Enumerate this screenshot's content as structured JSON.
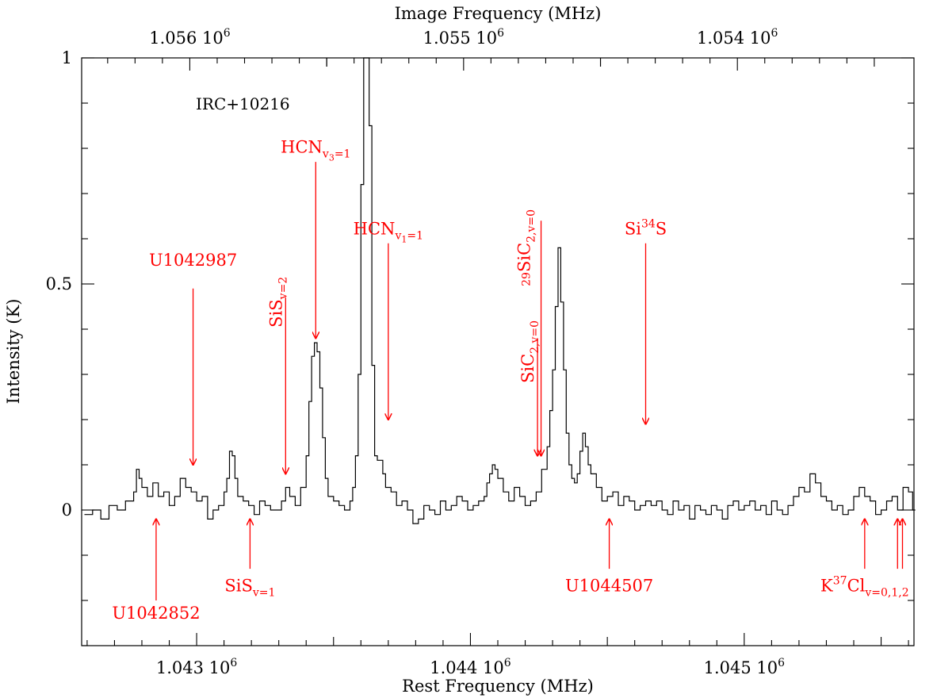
{
  "chart_data": {
    "type": "line",
    "title": "",
    "object_label": "IRC+10216",
    "xlabel": "Rest Frequency (MHz)",
    "ylabel": "Intensity (K)",
    "top_xlabel": "Image Frequency (MHz)",
    "xlim": [
      1042580,
      1045620
    ],
    "ylim": [
      -0.3,
      1.0
    ],
    "grid": false,
    "x_ticks": [
      {
        "value": 1043000,
        "label": "1.043 10",
        "exp": "6"
      },
      {
        "value": 1044000,
        "label": "1.044 10",
        "exp": "6"
      },
      {
        "value": 1045000,
        "label": "1.045 10",
        "exp": "6"
      }
    ],
    "top_ticks": [
      {
        "label": "1.056 10",
        "exp": "6",
        "rest_value": 1042975
      },
      {
        "label": "1.055 10",
        "exp": "6",
        "rest_value": 1043975
      },
      {
        "label": "1.054 10",
        "exp": "6",
        "rest_value": 1044975
      }
    ],
    "y_ticks": [
      {
        "value": 0,
        "label": "0"
      },
      {
        "value": 0.5,
        "label": "0.5"
      },
      {
        "value": 1,
        "label": "1"
      }
    ],
    "series": [
      {
        "color": "#000000",
        "step": true,
        "points": [
          [
            1042590,
            -0.01
          ],
          [
            1042620,
            0.0
          ],
          [
            1042650,
            -0.02
          ],
          [
            1042680,
            0.01
          ],
          [
            1042710,
            0.0
          ],
          [
            1042740,
            0.02
          ],
          [
            1042770,
            0.04
          ],
          [
            1042780,
            0.09
          ],
          [
            1042790,
            0.07
          ],
          [
            1042800,
            0.05
          ],
          [
            1042820,
            0.03
          ],
          [
            1042840,
            0.06
          ],
          [
            1042860,
            0.03
          ],
          [
            1042880,
            0.04
          ],
          [
            1042900,
            0.01
          ],
          [
            1042920,
            0.03
          ],
          [
            1042940,
            0.07
          ],
          [
            1042960,
            0.05
          ],
          [
            1042980,
            0.04
          ],
          [
            1043000,
            0.02
          ],
          [
            1043020,
            0.03
          ],
          [
            1043040,
            -0.02
          ],
          [
            1043060,
            0.0
          ],
          [
            1043080,
            0.01
          ],
          [
            1043100,
            0.04
          ],
          [
            1043110,
            0.07
          ],
          [
            1043120,
            0.13
          ],
          [
            1043130,
            0.12
          ],
          [
            1043140,
            0.07
          ],
          [
            1043150,
            0.03
          ],
          [
            1043170,
            0.02
          ],
          [
            1043190,
            0.01
          ],
          [
            1043210,
            -0.01
          ],
          [
            1043230,
            0.02
          ],
          [
            1043250,
            0.01
          ],
          [
            1043270,
            0.0
          ],
          [
            1043290,
            0.0
          ],
          [
            1043310,
            0.02
          ],
          [
            1043325,
            0.05
          ],
          [
            1043340,
            0.03
          ],
          [
            1043360,
            0.01
          ],
          [
            1043380,
            0.05
          ],
          [
            1043400,
            0.12
          ],
          [
            1043410,
            0.24
          ],
          [
            1043420,
            0.34
          ],
          [
            1043430,
            0.37
          ],
          [
            1043440,
            0.35
          ],
          [
            1043450,
            0.27
          ],
          [
            1043460,
            0.16
          ],
          [
            1043470,
            0.07
          ],
          [
            1043480,
            0.03
          ],
          [
            1043500,
            0.02
          ],
          [
            1043520,
            0.01
          ],
          [
            1043540,
            0.0
          ],
          [
            1043560,
            0.02
          ],
          [
            1043570,
            0.05
          ],
          [
            1043580,
            0.12
          ],
          [
            1043590,
            0.3
          ],
          [
            1043600,
            0.72
          ],
          [
            1043610,
            1.0
          ],
          [
            1043620,
            1.0
          ],
          [
            1043630,
            0.85
          ],
          [
            1043640,
            0.32
          ],
          [
            1043650,
            0.12
          ],
          [
            1043660,
            0.11
          ],
          [
            1043670,
            0.11
          ],
          [
            1043680,
            0.08
          ],
          [
            1043690,
            0.05
          ],
          [
            1043710,
            0.04
          ],
          [
            1043730,
            0.01
          ],
          [
            1043750,
            0.02
          ],
          [
            1043770,
            0.0
          ],
          [
            1043790,
            -0.03
          ],
          [
            1043810,
            -0.02
          ],
          [
            1043830,
            0.01
          ],
          [
            1043850,
            0.0
          ],
          [
            1043870,
            -0.01
          ],
          [
            1043890,
            0.02
          ],
          [
            1043910,
            0.0
          ],
          [
            1043930,
            0.01
          ],
          [
            1043950,
            0.03
          ],
          [
            1043970,
            0.02
          ],
          [
            1043990,
            0.0
          ],
          [
            1044010,
            0.01
          ],
          [
            1044030,
            0.02
          ],
          [
            1044050,
            0.03
          ],
          [
            1044060,
            0.06
          ],
          [
            1044070,
            0.08
          ],
          [
            1044080,
            0.1
          ],
          [
            1044090,
            0.09
          ],
          [
            1044100,
            0.07
          ],
          [
            1044120,
            0.04
          ],
          [
            1044140,
            0.02
          ],
          [
            1044160,
            0.05
          ],
          [
            1044180,
            0.03
          ],
          [
            1044200,
            0.01
          ],
          [
            1044220,
            0.02
          ],
          [
            1044240,
            0.04
          ],
          [
            1044260,
            0.09
          ],
          [
            1044280,
            0.14
          ],
          [
            1044290,
            0.22
          ],
          [
            1044300,
            0.31
          ],
          [
            1044310,
            0.45
          ],
          [
            1044320,
            0.58
          ],
          [
            1044330,
            0.46
          ],
          [
            1044340,
            0.31
          ],
          [
            1044350,
            0.17
          ],
          [
            1044360,
            0.1
          ],
          [
            1044370,
            0.07
          ],
          [
            1044380,
            0.06
          ],
          [
            1044390,
            0.08
          ],
          [
            1044400,
            0.13
          ],
          [
            1044410,
            0.17
          ],
          [
            1044420,
            0.14
          ],
          [
            1044430,
            0.1
          ],
          [
            1044440,
            0.08
          ],
          [
            1044460,
            0.05
          ],
          [
            1044480,
            0.02
          ],
          [
            1044500,
            0.03
          ],
          [
            1044520,
            0.04
          ],
          [
            1044540,
            0.01
          ],
          [
            1044560,
            0.03
          ],
          [
            1044580,
            0.02
          ],
          [
            1044600,
            0.0
          ],
          [
            1044620,
            0.01
          ],
          [
            1044640,
            0.02
          ],
          [
            1044660,
            0.01
          ],
          [
            1044680,
            0.02
          ],
          [
            1044700,
            0.0
          ],
          [
            1044720,
            -0.01
          ],
          [
            1044740,
            0.02
          ],
          [
            1044760,
            0.0
          ],
          [
            1044780,
            0.01
          ],
          [
            1044800,
            -0.02
          ],
          [
            1044820,
            0.01
          ],
          [
            1044840,
            0.0
          ],
          [
            1044860,
            -0.01
          ],
          [
            1044880,
            0.01
          ],
          [
            1044900,
            0.0
          ],
          [
            1044920,
            -0.02
          ],
          [
            1044940,
            0.01
          ],
          [
            1044960,
            0.02
          ],
          [
            1044980,
            0.0
          ],
          [
            1045000,
            0.01
          ],
          [
            1045020,
            0.02
          ],
          [
            1045040,
            0.0
          ],
          [
            1045060,
            0.01
          ],
          [
            1045080,
            -0.01
          ],
          [
            1045100,
            0.02
          ],
          [
            1045120,
            0.0
          ],
          [
            1045140,
            -0.01
          ],
          [
            1045160,
            0.01
          ],
          [
            1045180,
            0.03
          ],
          [
            1045200,
            0.05
          ],
          [
            1045220,
            0.04
          ],
          [
            1045240,
            0.08
          ],
          [
            1045260,
            0.06
          ],
          [
            1045280,
            0.03
          ],
          [
            1045300,
            0.02
          ],
          [
            1045320,
            0.0
          ],
          [
            1045340,
            0.01
          ],
          [
            1045360,
            -0.01
          ],
          [
            1045380,
            0.0
          ],
          [
            1045400,
            0.03
          ],
          [
            1045420,
            0.05
          ],
          [
            1045440,
            0.03
          ],
          [
            1045460,
            0.02
          ],
          [
            1045480,
            -0.01
          ],
          [
            1045500,
            0.0
          ],
          [
            1045520,
            0.02
          ],
          [
            1045540,
            0.03
          ],
          [
            1045560,
            0.0
          ],
          [
            1045580,
            0.05
          ],
          [
            1045600,
            0.04
          ],
          [
            1045615,
            0.0
          ]
        ]
      }
    ],
    "annotations": [
      {
        "label": "U1042987",
        "freq": 1042987,
        "direction": "down",
        "label_y": 0.54,
        "tail_y": 0.49,
        "head_y": 0.1,
        "rotated": false
      },
      {
        "label": "SiS",
        "sub": "v=2",
        "freq": 1043325,
        "direction": "down",
        "label_y": 0.46,
        "tail_y": 0.47,
        "head_y": 0.08,
        "rotated": true
      },
      {
        "label": "HCN",
        "sub": "v",
        "subsub": "3",
        "subtail": "=1",
        "freq": 1043435,
        "direction": "down",
        "label_y": 0.79,
        "tail_y": 0.77,
        "head_y": 0.38,
        "rotated": false
      },
      {
        "label": "HCN",
        "sub": "v",
        "subsub": "1",
        "subtail": "=1",
        "freq": 1043700,
        "direction": "down",
        "label_y": 0.61,
        "tail_y": 0.59,
        "head_y": 0.2,
        "rotated": false
      },
      {
        "label": "SiC",
        "sub": "2,v=0",
        "freq": 1044245,
        "direction": "down",
        "label_y": 0.35,
        "tail_y": 0.38,
        "head_y": 0.12,
        "rotated": true
      },
      {
        "label": "SiC",
        "sup_pre": "29",
        "sub": "2,v=0",
        "freq": 1044258,
        "direction": "down",
        "label_y": 0.58,
        "tail_y": 0.64,
        "head_y": 0.12,
        "rotated": true
      },
      {
        "label": "Si",
        "sup": "34",
        "label_tail": "S",
        "freq": 1044640,
        "direction": "down",
        "label_y": 0.61,
        "tail_y": 0.59,
        "head_y": 0.19,
        "rotated": false
      },
      {
        "label": "U1042852",
        "freq": 1042852,
        "direction": "up",
        "label_y": -0.24,
        "tail_y": -0.2,
        "head_y": -0.02,
        "rotated": false
      },
      {
        "label": "SiS",
        "sub": "v=1",
        "freq": 1043195,
        "direction": "up",
        "label_y": -0.18,
        "tail_y": -0.13,
        "head_y": -0.02,
        "rotated": false
      },
      {
        "label": "U1044507",
        "freq": 1044507,
        "direction": "up",
        "label_y": -0.18,
        "tail_y": -0.13,
        "head_y": -0.02,
        "rotated": false
      },
      {
        "label": "K",
        "sup": "37",
        "label_tail": "Cl",
        "sub": "v=0,1,2",
        "freq": 1045440,
        "freqs_extra": [
          1045560,
          1045578
        ],
        "direction": "up",
        "label_y": -0.18,
        "tail_y": -0.13,
        "head_y": -0.02,
        "rotated": false
      }
    ]
  },
  "colors": {
    "spectrum": "#000000",
    "annotations": "#ff0000",
    "axes": "#000000"
  }
}
